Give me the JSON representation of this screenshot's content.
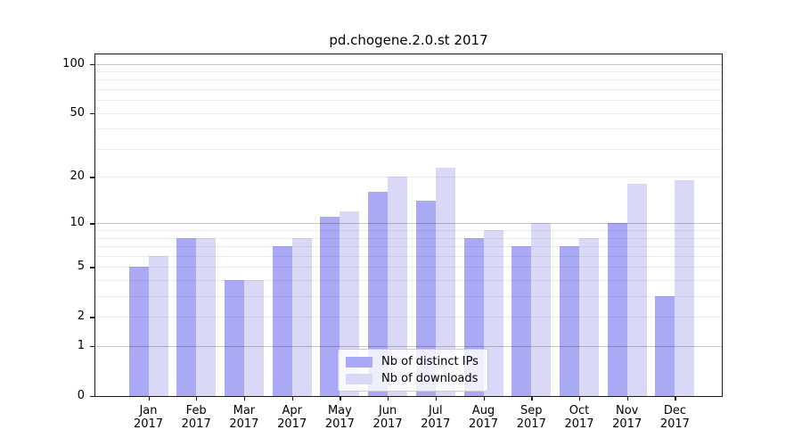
{
  "chart_data": {
    "type": "bar",
    "title": "pd.chogene.2.0.st 2017",
    "categories": [
      "Jan 2017",
      "Feb 2017",
      "Mar 2017",
      "Apr 2017",
      "May 2017",
      "Jun 2017",
      "Jul 2017",
      "Aug 2017",
      "Sep 2017",
      "Oct 2017",
      "Nov 2017",
      "Dec 2017"
    ],
    "series": [
      {
        "name": "Nb of distinct IPs",
        "color": "#a9a9f5",
        "values": [
          5,
          8,
          4,
          7,
          11,
          16,
          14,
          8,
          7,
          7,
          10,
          3
        ]
      },
      {
        "name": "Nb of downloads",
        "color": "#d9d9f7",
        "values": [
          6,
          8,
          4,
          8,
          12,
          20,
          23,
          9,
          10,
          8,
          18,
          19
        ]
      }
    ],
    "xlabel": "",
    "ylabel": "",
    "yscale": "log1p",
    "ylim": [
      0,
      114
    ],
    "yticks": [
      0,
      1,
      2,
      5,
      10,
      20,
      50,
      100
    ],
    "grid_major": [
      1,
      10,
      100
    ],
    "grid_minor": [
      2,
      3,
      4,
      5,
      6,
      7,
      8,
      9,
      20,
      30,
      40,
      50,
      60,
      70,
      80,
      90
    ],
    "grid": true,
    "legend_position": "bottom-center"
  }
}
